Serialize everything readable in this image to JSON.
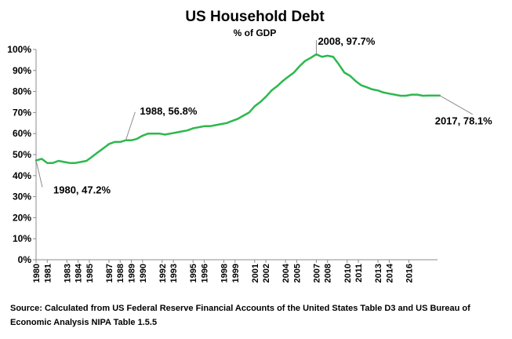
{
  "chart_data": {
    "type": "line",
    "title": "US Household Debt",
    "subtitle": "% of GDP",
    "xlabel": "",
    "ylabel": "",
    "ylim": [
      0,
      100
    ],
    "y_tick_labels": [
      "0%",
      "10%",
      "20%",
      "30%",
      "40%",
      "50%",
      "60%",
      "70%",
      "80%",
      "90%",
      "100%"
    ],
    "x_tick_labels": [
      "1980",
      "1981",
      "1983",
      "1984",
      "1985",
      "1987",
      "1988",
      "1989",
      "1990",
      "1992",
      "1993",
      "1995",
      "1996",
      "1998",
      "1999",
      "2001",
      "2002",
      "2004",
      "2005",
      "2007",
      "2008",
      "2010",
      "2011",
      "2013",
      "2014",
      "2016"
    ],
    "x_tick_years": [
      1980.0,
      1981.0,
      1982.75,
      1983.75,
      1984.75,
      1986.5,
      1987.5,
      1988.5,
      1989.5,
      1991.25,
      1992.25,
      1994.0,
      1995.0,
      1996.75,
      1997.75,
      1999.5,
      2000.5,
      2002.25,
      2003.25,
      2005.0,
      2006.0,
      2007.75,
      2008.75,
      2010.5,
      2011.5,
      2013.25
    ],
    "grid": false,
    "legend": "none",
    "line_color": "#2DB84D",
    "series": [
      {
        "name": "",
        "x": [
          1980.0,
          1980.5,
          1981.0,
          1981.5,
          1982.0,
          1982.5,
          1983.0,
          1983.5,
          1984.0,
          1984.5,
          1985.0,
          1985.5,
          1986.0,
          1986.5,
          1987.0,
          1987.5,
          1988.0,
          1988.5,
          1989.0,
          1989.5,
          1990.0,
          1990.5,
          1991.0,
          1991.5,
          1992.0,
          1992.5,
          1993.0,
          1993.5,
          1994.0,
          1994.5,
          1995.0,
          1995.5,
          1996.0,
          1996.5,
          1997.0,
          1997.5,
          1998.0,
          1998.5,
          1999.0,
          1999.5,
          2000.0,
          2000.5,
          2001.0,
          2001.5,
          2002.0,
          2002.5,
          2003.0,
          2003.5,
          2004.0,
          2004.5,
          2005.0,
          2005.5,
          2006.0,
          2006.5,
          2007.0,
          2007.5,
          2008.0,
          2008.5,
          2009.0,
          2009.5,
          2010.0,
          2010.5,
          2011.0,
          2011.5,
          2012.0,
          2012.5,
          2013.0,
          2013.5,
          2014.0,
          2014.5,
          2015.0,
          2015.5,
          2016.0
        ],
        "values": [
          47.2,
          48.0,
          46.0,
          46.0,
          47.0,
          46.5,
          46.0,
          46.0,
          46.5,
          47.0,
          49.0,
          51.0,
          53.0,
          55.0,
          56.0,
          56.0,
          56.8,
          56.8,
          57.5,
          59.0,
          60.0,
          60.0,
          60.0,
          59.5,
          60.0,
          60.5,
          61.0,
          61.5,
          62.5,
          63.0,
          63.5,
          63.5,
          64.0,
          64.5,
          65.0,
          66.0,
          67.0,
          68.5,
          70.0,
          73.0,
          75.0,
          77.5,
          80.5,
          82.5,
          85.0,
          87.0,
          89.0,
          92.0,
          94.5,
          96.0,
          97.7,
          96.5,
          97.0,
          96.5,
          93.0,
          89.0,
          87.5,
          85.0,
          83.0,
          82.0,
          81.0,
          80.5,
          79.5,
          79.0,
          78.5,
          78.0,
          78.0,
          78.5,
          78.5,
          78.0,
          78.1,
          78.1,
          78.1
        ]
      }
    ],
    "annotations": [
      {
        "text": "1980, 47.2%",
        "x": 1980.0,
        "y": 47.2
      },
      {
        "text": "1988, 56.8%",
        "x": 1988.0,
        "y": 56.8
      },
      {
        "text": "2008, 97.7%",
        "x": 2005.0,
        "y": 97.7
      },
      {
        "text": "2017, 78.1%",
        "x": 2016.0,
        "y": 78.1
      }
    ],
    "source": "Source: Calculated from US Federal Reserve Financial Accounts of the United States Table D3 and US Bureau of Economic Analysis NIPA Table 1.5.5"
  }
}
